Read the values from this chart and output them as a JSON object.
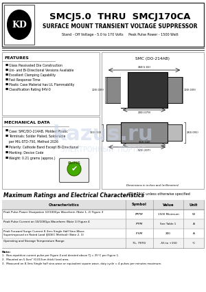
{
  "title_main": "SMCJ5.0  THRU  SMCJ170CA",
  "title_sub": "SURFACE MOUNT TRANSIENT VOLTAGE SUPPRESSOR",
  "title_sub2": "Stand - Off Voltage - 5.0 to 170 Volts     Peak Pulse Power - 1500 Watt",
  "features_title": "FEATURES",
  "features": [
    "Glass Passivated Die Construction",
    "Uni- and Bi-Directional Versions Available",
    "Excellent Clamping Capability",
    "Fast Response Time",
    "Plastic Case Material has UL Flammability",
    "Classification Rating 94V-0"
  ],
  "mech_title": "MECHANICAL DATA",
  "mech_lines": [
    [
      "bullet",
      "Case: SMC/DO-214AB, Molded Plastic"
    ],
    [
      "bullet",
      "Terminals: Solder Plated, Solderable"
    ],
    [
      "indent",
      "per MIL-STD-750, Method 2026"
    ],
    [
      "bullet",
      "Polarity: Cathode Band Except Bi-Directional"
    ],
    [
      "bullet",
      "Marking: Device Code"
    ],
    [
      "bullet",
      "Weight: 0.21 grams (approx.)"
    ]
  ],
  "diagram_title": "SMC (DO-214AB)",
  "dim_note": "Dimensions in inches and (millimeters)",
  "table_title": "Maximum Ratings and Electrical Characteristics",
  "table_subtitle": "@TJ=25°C unless otherwise specified",
  "table_headers": [
    "Characteristics",
    "Symbol",
    "Value",
    "Unit"
  ],
  "table_rows": [
    [
      "Peak Pulse Power Dissipation 10/1000μs Waveform (Note 1, 2) Figure 3",
      "PPPM",
      "1500 Minimum",
      "W"
    ],
    [
      "Peak Pulse Current on 10/1000μs Waveform (Note 1) Figure 4",
      "IPPM",
      "See Table 1",
      "A"
    ],
    [
      "Peak Forward Surge Current 8.3ms Single Half Sine-Wave\nSuperimposed on Rated Load (JEDEC Method) (Note 2, 3)",
      "IFSM",
      "200",
      "A"
    ],
    [
      "Operating and Storage Temperature Range",
      "TL, TSTG",
      "-55 to +150",
      "°C"
    ]
  ],
  "notes_label": "Note:",
  "notes": [
    "1.  Non-repetitive current pulse per Figure 4 and derated above TJ = 25°C per Figure 1.",
    "2.  Mounted on 5.0cm² (0.013cm thick) land area.",
    "3.  Measured on 8.3ms Single half sine-wave or equivalent square wave, duty cycle = 4 pulses per minutes maximum."
  ],
  "watermark1": "kazus.ru",
  "watermark2": "ЭЛЕКТРОННЫЙ  ПОРТАЛ",
  "watermark_color": "#c8d4e8",
  "bg_color": "#ffffff"
}
